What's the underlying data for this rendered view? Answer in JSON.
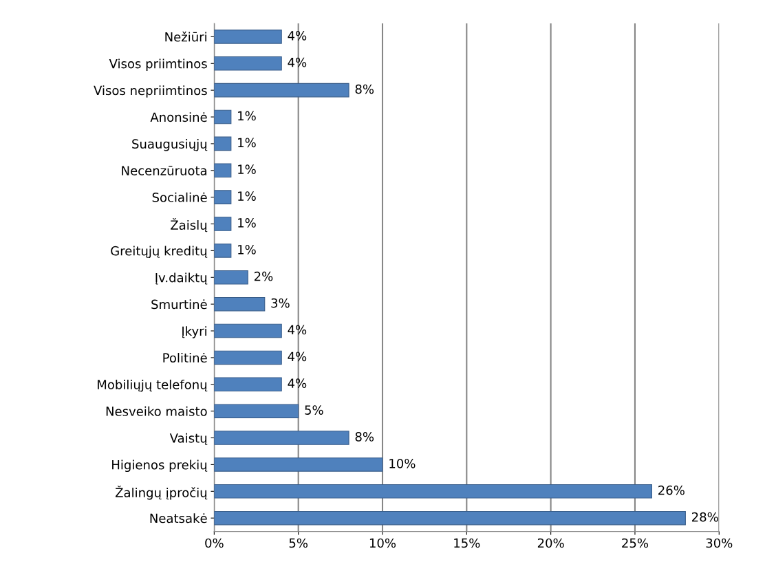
{
  "chart_data": {
    "type": "bar",
    "orientation": "horizontal",
    "categories": [
      "Nežiūri",
      "Visos priimtinos",
      "Visos nepriimtinos",
      "Anonsinė",
      "Suaugusiųjų",
      "Necenzūruota",
      "Socialinė",
      "Žaislų",
      "Greitųjų kreditų",
      "Įv.daiktų",
      "Smurtinė",
      "Įkyri",
      "Politinė",
      "Mobiliųjų telefonų",
      "Nesveiko maisto",
      "Vaistų",
      "Higienos prekių",
      "Žalingų įpročių",
      "Neatsakė"
    ],
    "values": [
      4,
      4,
      8,
      1,
      1,
      1,
      1,
      1,
      1,
      2,
      3,
      4,
      4,
      4,
      5,
      8,
      10,
      26,
      28
    ],
    "value_labels": [
      "4%",
      "4%",
      "8%",
      "1%",
      "1%",
      "1%",
      "1%",
      "1%",
      "1%",
      "2%",
      "3%",
      "4%",
      "4%",
      "4%",
      "5%",
      "8%",
      "10%",
      "26%",
      "28%"
    ],
    "color": "#4f81bd",
    "xlim": [
      0,
      30
    ],
    "xticks": [
      {
        "value": 0,
        "label": "0%"
      },
      {
        "value": 5,
        "label": "5%"
      },
      {
        "value": 10,
        "label": "10%"
      },
      {
        "value": 15,
        "label": "15%"
      },
      {
        "value": 20,
        "label": "20%"
      },
      {
        "value": 25,
        "label": "25%"
      },
      {
        "value": 30,
        "label": "30%"
      }
    ],
    "grid": "x"
  }
}
